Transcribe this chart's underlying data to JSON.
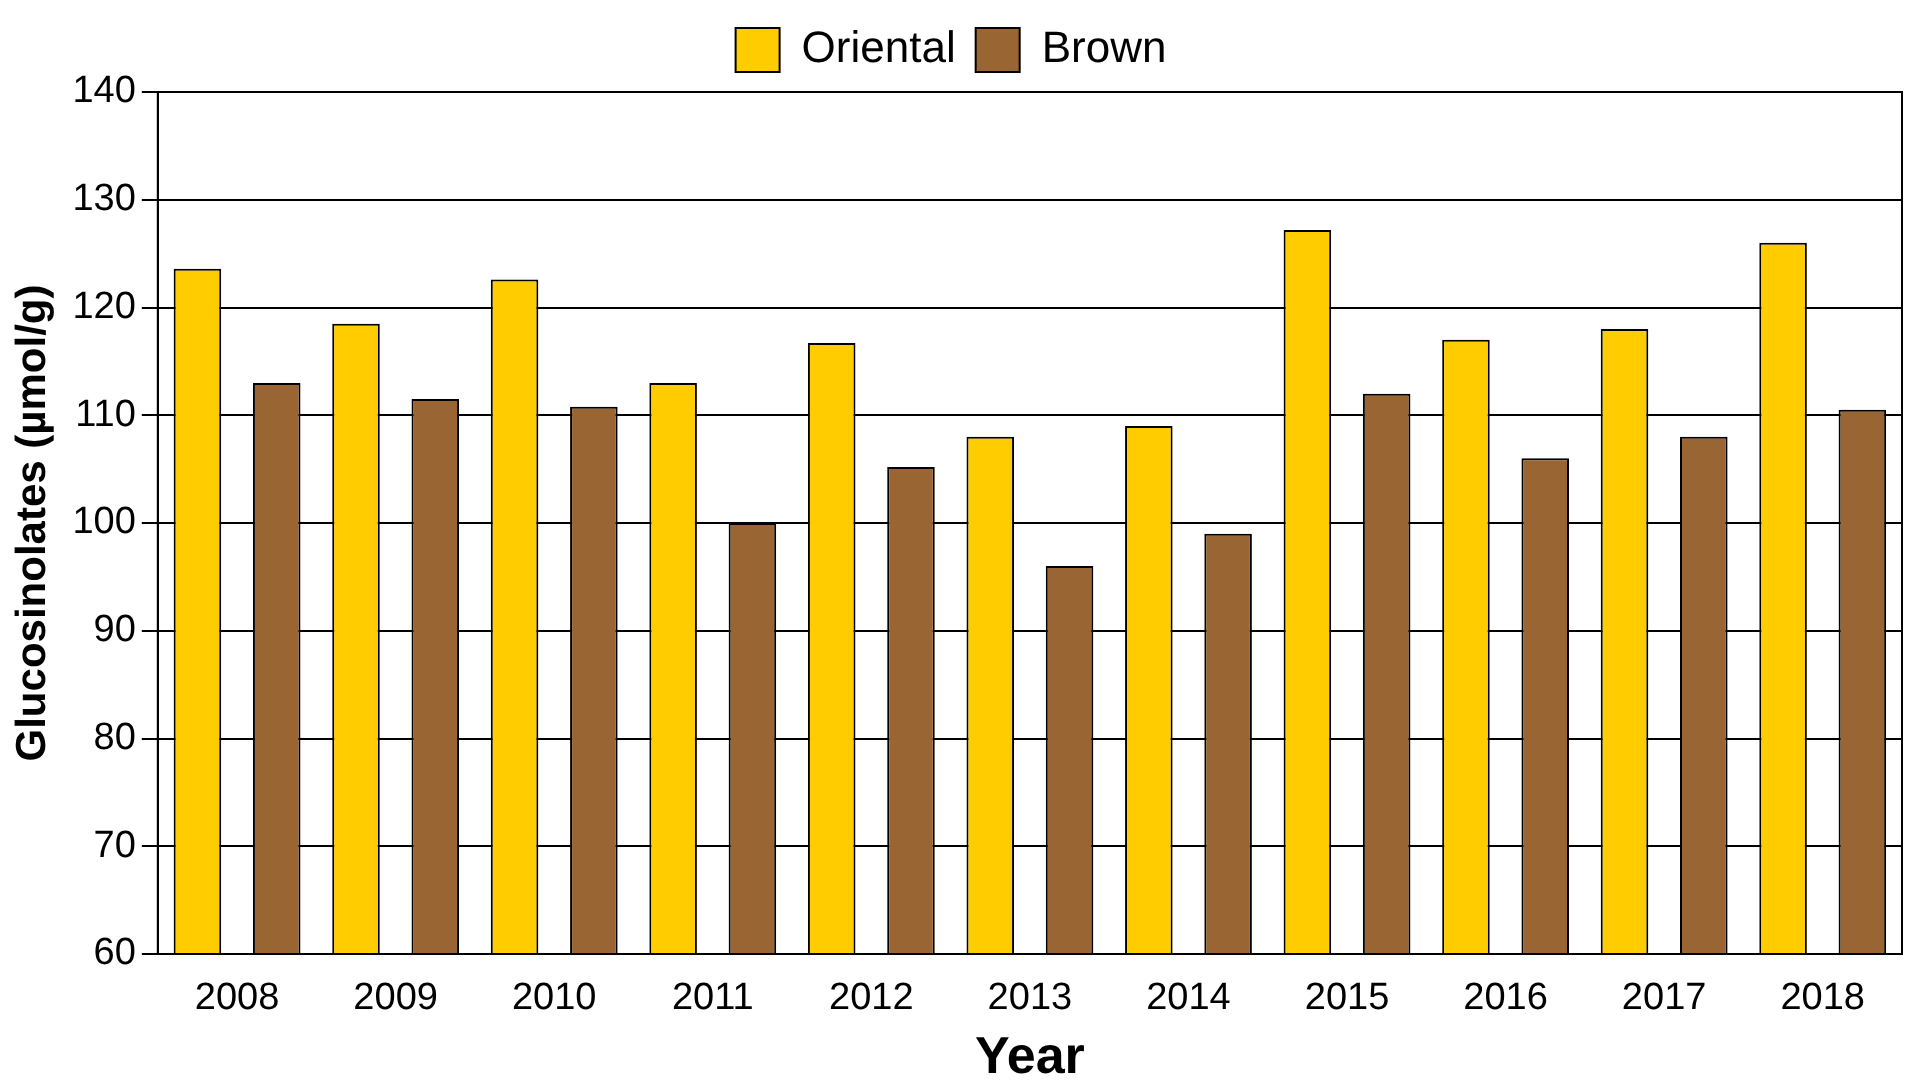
{
  "chart_data": {
    "type": "bar",
    "xlabel": "Year",
    "ylabel": "Glucosinolates (µmol/g)",
    "categories": [
      "2008",
      "2009",
      "2010",
      "2011",
      "2012",
      "2013",
      "2014",
      "2015",
      "2016",
      "2017",
      "2018"
    ],
    "series": [
      {
        "name": "Oriental",
        "color": "#ffcc00",
        "values": [
          123.6,
          118.5,
          122.6,
          113,
          116.7,
          108,
          109,
          127.2,
          117,
          118,
          126
        ]
      },
      {
        "name": "Brown",
        "color": "#996633",
        "values": [
          113,
          111.5,
          110.8,
          100,
          105.2,
          96,
          99,
          112,
          106,
          108,
          110.5
        ]
      }
    ],
    "ylim": [
      60,
      140
    ],
    "yticks": [
      60,
      70,
      80,
      90,
      100,
      110,
      120,
      130,
      140
    ],
    "grid": "y",
    "legend": "top"
  }
}
